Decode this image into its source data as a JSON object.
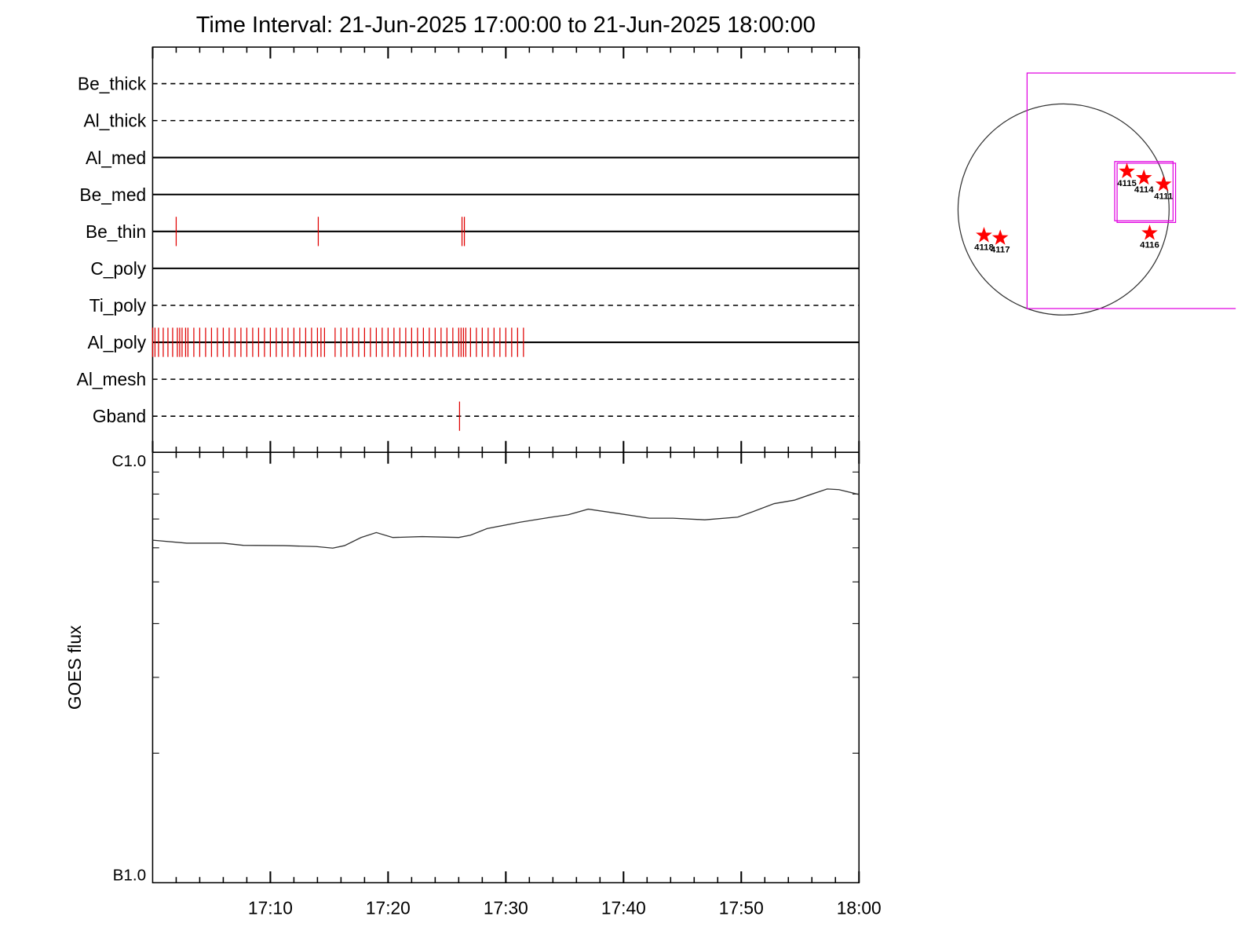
{
  "chart_data": [
    {
      "type": "timeline",
      "title": "Time Interval: 21-Jun-2025 17:00:00 to 21-Jun-2025 18:00:00",
      "categories": [
        "Be_thick",
        "Al_thick",
        "Al_med",
        "Be_med",
        "Be_thin",
        "C_poly",
        "Ti_poly",
        "Al_poly",
        "Al_mesh",
        "Gband"
      ],
      "line_styles": [
        "dashed",
        "dashed",
        "solid",
        "solid",
        "solid",
        "solid",
        "dashed",
        "solid",
        "dashed",
        "dashed"
      ],
      "event_color": "#e00000",
      "event_x": [
        [],
        [],
        [],
        [],
        [
          2.0,
          14.07,
          26.28,
          26.48
        ],
        [],
        [],
        [
          0,
          0.2,
          0.5,
          0.9,
          1.3,
          1.7,
          2.1,
          2.3,
          2.5,
          2.8,
          3.0,
          3.5,
          4.0,
          4.5,
          5.0,
          5.5,
          6.0,
          6.5,
          7.0,
          7.5,
          8.0,
          8.5,
          9.0,
          9.5,
          10.0,
          10.5,
          11.0,
          11.5,
          12.0,
          12.5,
          13.0,
          13.5,
          14.0,
          14.3,
          14.6,
          15.5,
          16.0,
          16.5,
          17.0,
          17.5,
          18.0,
          18.5,
          19.0,
          19.5,
          20.0,
          20.5,
          21.0,
          21.5,
          22.0,
          22.5,
          23.0,
          23.5,
          24.0,
          24.5,
          25.0,
          25.5,
          26.0,
          26.2,
          26.4,
          26.6,
          27.0,
          27.5,
          28.0,
          28.5,
          29.0,
          29.5,
          30.0,
          30.5,
          31.0,
          31.5
        ],
        [],
        [
          26.07
        ]
      ],
      "xlim": [
        0,
        60
      ],
      "xticks": [
        0,
        10,
        20,
        30,
        40,
        50,
        60
      ],
      "xminor_ticks": [
        2,
        4,
        6,
        8,
        12,
        14,
        16,
        18,
        22,
        24,
        26,
        28,
        32,
        34,
        36,
        38,
        42,
        44,
        46,
        48,
        52,
        54,
        56,
        58
      ]
    },
    {
      "type": "line",
      "ylabel": "GOES flux",
      "ylog": true,
      "color": "#333333",
      "x": [
        0,
        2.9,
        6.0,
        7.7,
        11.2,
        13.9,
        15.3,
        16.3,
        17.7,
        19.0,
        20.4,
        22.9,
        26.0,
        27.0,
        28.4,
        31.2,
        33.9,
        35.3,
        37.0,
        39.4,
        42.2,
        44.2,
        46.9,
        49.7,
        51.0,
        52.8,
        54.5,
        55.9,
        57.3,
        58.3,
        60
      ],
      "values": [
        6.25e-07,
        6.15e-07,
        6.15e-07,
        6.08e-07,
        6.07e-07,
        6.04e-07,
        5.99e-07,
        6.07e-07,
        6.34e-07,
        6.51e-07,
        6.34e-07,
        6.37e-07,
        6.34e-07,
        6.42e-07,
        6.65e-07,
        6.88e-07,
        7.07e-07,
        7.16e-07,
        7.38e-07,
        7.22e-07,
        7.03e-07,
        7.03e-07,
        6.97e-07,
        7.07e-07,
        7.28e-07,
        7.6e-07,
        7.74e-07,
        7.98e-07,
        8.22e-07,
        8.19e-07,
        7.98e-07
      ],
      "xlim": [
        0,
        60
      ],
      "xticks": [
        {
          "value": 10,
          "label": "17:10"
        },
        {
          "value": 20,
          "label": "17:20"
        },
        {
          "value": 30,
          "label": "17:30"
        },
        {
          "value": 40,
          "label": "17:40"
        },
        {
          "value": 50,
          "label": "17:50"
        },
        {
          "value": 60,
          "label": "18:00"
        }
      ],
      "xminor_ticks": [
        2,
        4,
        6,
        8,
        12,
        14,
        16,
        18,
        22,
        24,
        26,
        28,
        32,
        34,
        36,
        38,
        42,
        44,
        46,
        48,
        52,
        54,
        56,
        58
      ],
      "ylim": [
        1e-07,
        1e-06
      ],
      "yticks": [
        {
          "value": 1e-07,
          "label": "B1.0"
        },
        {
          "value": 1e-06,
          "label": "C1.0"
        }
      ],
      "yminor_ticks": [
        2e-07,
        3e-07,
        4e-07,
        5e-07,
        6e-07,
        7e-07,
        8e-07,
        9e-07
      ]
    },
    {
      "type": "map",
      "xlim": [
        -1034,
        1566
      ],
      "ylim": [
        -1049,
        1462
      ],
      "disk_radius": 960,
      "fov_color": "#e000e0",
      "region_color": "#ff0000",
      "fovs": [
        [
          -332,
          1241,
          2000,
          -901
        ],
        [
          465,
          436,
          996,
          -103
        ],
        [
          487,
          421,
          1019,
          -118
        ]
      ],
      "regions": [
        {
          "label": "4115",
          "x": 576,
          "y": 347
        },
        {
          "label": "4114",
          "x": 731,
          "y": 288
        },
        {
          "label": "4111",
          "x": 909,
          "y": 229
        },
        {
          "label": "4116",
          "x": 783,
          "y": -214
        },
        {
          "label": "4118",
          "x": -724,
          "y": -236
        },
        {
          "label": "4117",
          "x": -576,
          "y": -259
        }
      ]
    }
  ]
}
